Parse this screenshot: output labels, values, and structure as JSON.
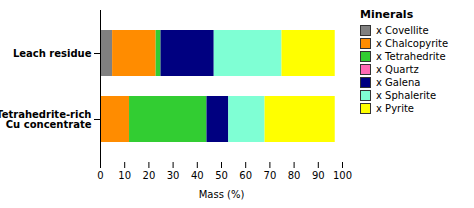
{
  "chart_data": {
    "type": "bar",
    "orientation": "horizontal",
    "stacked": true,
    "categories": [
      "Leach residue",
      "Tetrahedrite-rich\nCu concentrate"
    ],
    "series": [
      {
        "name": "x Covellite",
        "color": "#808080",
        "values": [
          5,
          0
        ]
      },
      {
        "name": "x Chalcopyrite",
        "color": "#FF8C00",
        "values": [
          18,
          12
        ]
      },
      {
        "name": "x Tetrahedrite",
        "color": "#32CD32",
        "values": [
          2,
          32
        ]
      },
      {
        "name": "x Quartz",
        "color": "#FF69B4",
        "values": [
          0,
          0
        ]
      },
      {
        "name": "x Galena",
        "color": "#000080",
        "values": [
          22,
          9
        ]
      },
      {
        "name": "x Sphalerite",
        "color": "#7FFFD4",
        "values": [
          28,
          15
        ]
      },
      {
        "name": "x Pyrite",
        "color": "#FFFF00",
        "values": [
          22,
          29
        ]
      }
    ],
    "xlabel": "Mass (%)",
    "legend_title": "Minerals",
    "legend": "right",
    "xlim": [
      0,
      100
    ],
    "xticks": [
      0,
      10,
      20,
      30,
      40,
      50,
      60,
      70,
      80,
      90,
      100
    ],
    "grid": false
  }
}
